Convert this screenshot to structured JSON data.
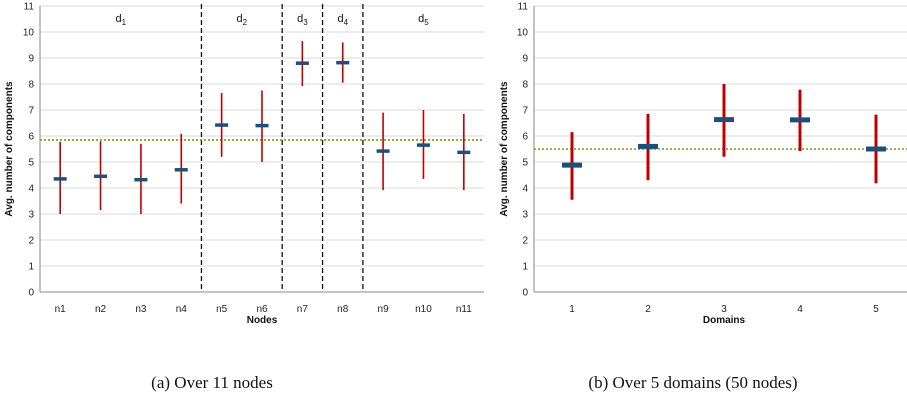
{
  "chart_data": [
    {
      "type": "errorbar",
      "caption": "(a) Over 11 nodes",
      "xlabel": "Nodes",
      "ylabel": "Avg. number of components",
      "ylim": [
        0,
        11
      ],
      "yticks": [
        "0",
        "1",
        "2",
        "3",
        "4",
        "5",
        "6",
        "7",
        "8",
        "9",
        "10",
        "11"
      ],
      "categories": [
        "n1",
        "n2",
        "n3",
        "n4",
        "n5",
        "n6",
        "n7",
        "n8",
        "n9",
        "n10",
        "n11"
      ],
      "means": [
        4.35,
        4.45,
        4.32,
        4.7,
        6.42,
        6.4,
        8.8,
        8.82,
        5.42,
        5.65,
        5.37
      ],
      "low": [
        3.0,
        3.15,
        3.0,
        3.4,
        5.2,
        5.0,
        7.92,
        8.05,
        3.92,
        4.35,
        3.92
      ],
      "high": [
        5.78,
        5.8,
        5.7,
        6.08,
        7.65,
        7.75,
        9.65,
        9.6,
        6.9,
        7.0,
        6.85
      ],
      "reference_line": 5.85,
      "regions": [
        {
          "label": "d",
          "sub": "1",
          "from": 0,
          "to": 4
        },
        {
          "label": "d",
          "sub": "2",
          "from": 4,
          "to": 6
        },
        {
          "label": "d",
          "sub": "3",
          "from": 6,
          "to": 7
        },
        {
          "label": "d",
          "sub": "4",
          "from": 7,
          "to": 8
        },
        {
          "label": "d",
          "sub": "5",
          "from": 8,
          "to": 11
        }
      ],
      "colors": {
        "error": "#c00000",
        "mean": "#1f4e79",
        "reference": "#7a9a1a",
        "grid": "#d9d9d9"
      }
    },
    {
      "type": "errorbar",
      "caption": "(b) Over 5 domains (50 nodes)",
      "xlabel": "Domains",
      "ylabel": "Avg. number of components",
      "ylim": [
        0,
        11
      ],
      "yticks": [
        "0",
        "1",
        "2",
        "3",
        "4",
        "5",
        "6",
        "7",
        "8",
        "9",
        "10",
        "11"
      ],
      "categories": [
        "1",
        "2",
        "3",
        "4",
        "5"
      ],
      "means": [
        4.88,
        5.6,
        6.63,
        6.62,
        5.5
      ],
      "low": [
        3.55,
        4.3,
        5.2,
        5.42,
        4.18
      ],
      "high": [
        6.15,
        6.85,
        8.0,
        7.78,
        6.82
      ],
      "reference_line": 5.5,
      "colors": {
        "error": "#c00000",
        "mean": "#1f4e79",
        "reference": "#7a9a1a",
        "grid": "#d9d9d9"
      }
    }
  ]
}
